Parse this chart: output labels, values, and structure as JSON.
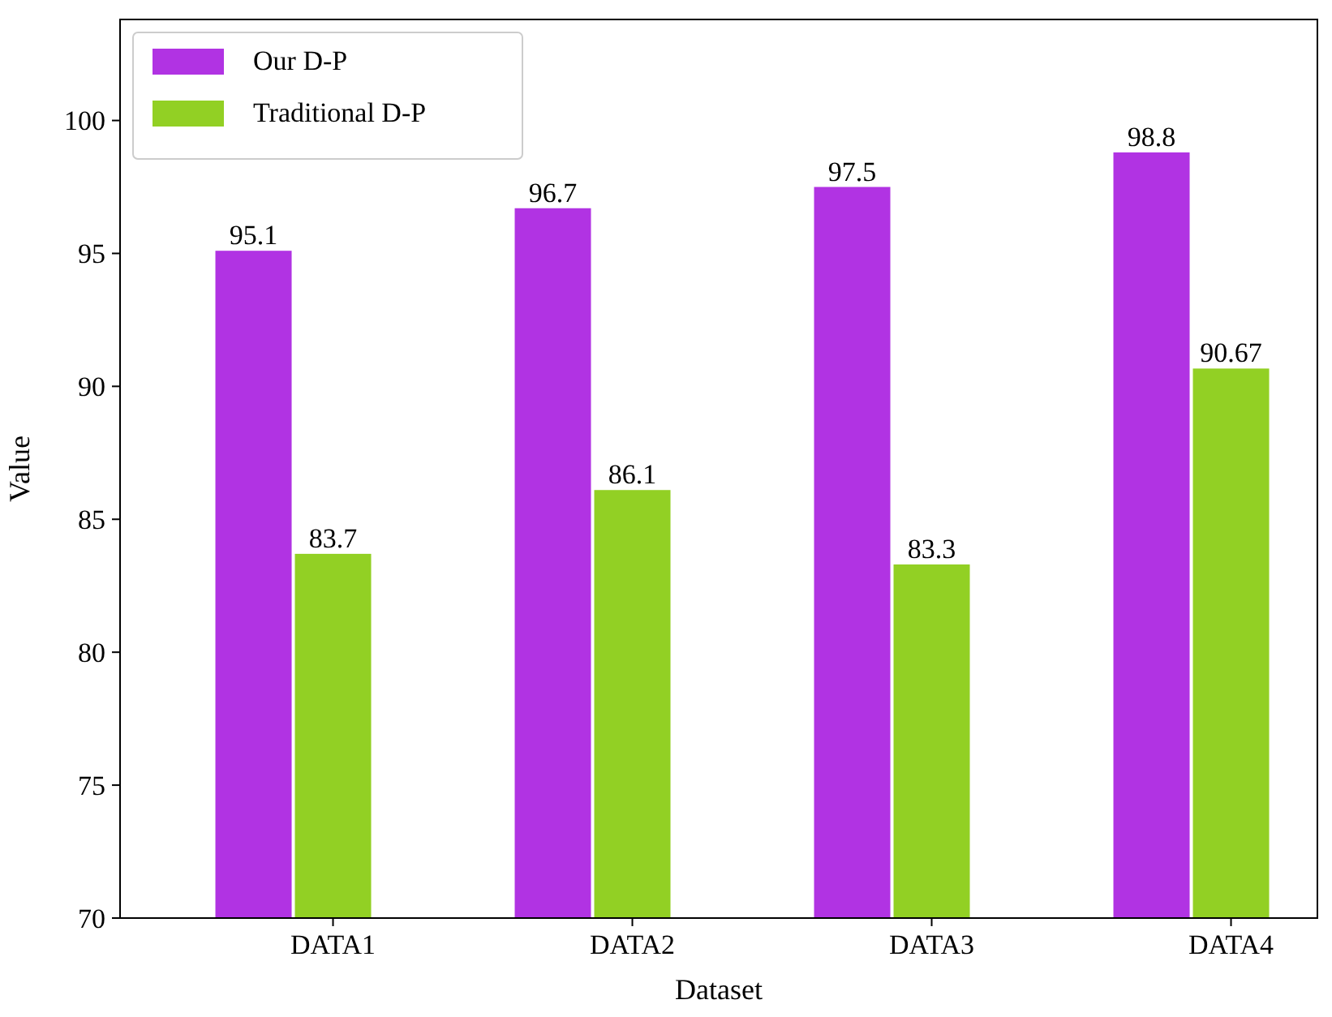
{
  "chart_data": {
    "type": "bar",
    "xlabel": "Dataset",
    "ylabel": "Value",
    "categories": [
      "DATA1",
      "DATA2",
      "DATA3",
      "DATA4"
    ],
    "series": [
      {
        "name": "Our D-P",
        "color": "#b133e3",
        "values": [
          95.1,
          96.7,
          97.5,
          98.8
        ]
      },
      {
        "name": "Traditional D-P",
        "color": "#92d024",
        "values": [
          83.7,
          86.1,
          83.3,
          90.67
        ]
      }
    ],
    "ylim": [
      70,
      103.8
    ],
    "yticks": [
      70,
      75,
      80,
      85,
      90,
      95,
      100
    ],
    "data_labels": true,
    "legend": "top left",
    "grid": false
  }
}
